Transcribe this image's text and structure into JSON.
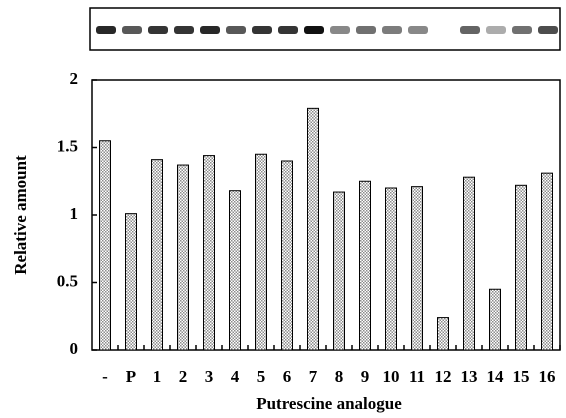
{
  "chart_data": {
    "type": "bar",
    "x_label": "Putrescine analogue",
    "y_label": "Relative amount",
    "categories": [
      "-",
      "P",
      "1",
      "2",
      "3",
      "4",
      "5",
      "6",
      "7",
      "8",
      "9",
      "10",
      "11",
      "12",
      "13",
      "14",
      "15",
      "16"
    ],
    "values": [
      1.55,
      1.01,
      1.41,
      1.37,
      1.44,
      1.18,
      1.45,
      1.4,
      1.79,
      1.17,
      1.25,
      1.2,
      1.21,
      0.24,
      1.28,
      0.45,
      1.22,
      1.31
    ],
    "color": "#8c8c8c",
    "ylim": [
      0,
      2
    ],
    "yticks": [
      0,
      0.5,
      1,
      1.5,
      2
    ]
  }
}
